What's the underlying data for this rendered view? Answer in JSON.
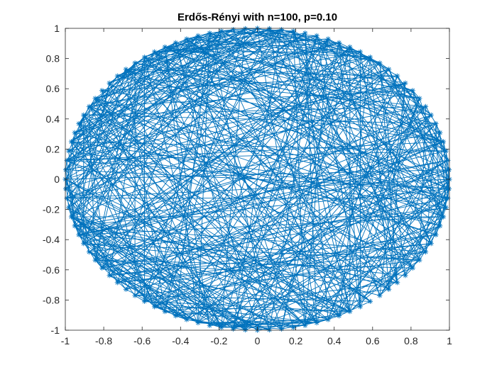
{
  "chart_data": {
    "type": "scatter",
    "title": "Erdős-Rényi with n=100, p=0.10",
    "xlabel": "",
    "ylabel": "",
    "xlim": [
      -1,
      1
    ],
    "ylim": [
      -1,
      1
    ],
    "xticks": [
      -1,
      -0.8,
      -0.6,
      -0.4,
      -0.2,
      0,
      0.2,
      0.4,
      0.6,
      0.8,
      1
    ],
    "yticks": [
      -1,
      -0.8,
      -0.6,
      -0.4,
      -0.2,
      0,
      0.2,
      0.4,
      0.6,
      0.8,
      1
    ],
    "xtick_labels": [
      "-1",
      "-0.8",
      "-0.6",
      "-0.4",
      "-0.2",
      "0",
      "0.2",
      "0.4",
      "0.6",
      "0.8",
      "1"
    ],
    "ytick_labels": [
      "-1",
      "-0.8",
      "-0.6",
      "-0.4",
      "-0.2",
      "0",
      "0.2",
      "0.4",
      "0.6",
      "0.8",
      "1"
    ],
    "grid": false,
    "legend": "none",
    "node_count": 100,
    "edge_probability": 0.1,
    "layout": "circle",
    "marker": "asterisk",
    "color": "#0072BD",
    "axis_color": "#262626"
  }
}
